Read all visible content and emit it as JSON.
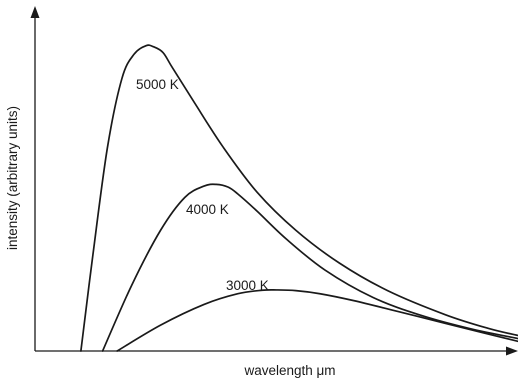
{
  "chart_data": {
    "type": "line",
    "title": "",
    "xlabel": "wavelength μm",
    "ylabel": "intensity (arbitrary units)",
    "xlim": [
      0,
      10
    ],
    "ylim": [
      0,
      100
    ],
    "grid": false,
    "legend": "none",
    "series": [
      {
        "name": "5000 K",
        "x": [
          0.95,
          1.2,
          1.5,
          1.8,
          2.05,
          2.3,
          2.45,
          2.65,
          2.85,
          3.3,
          3.9,
          4.6,
          5.4,
          6.3,
          7.3,
          8.5,
          9.4,
          10.0
        ],
        "values": [
          0,
          28,
          59,
          79,
          86,
          88.5,
          88.2,
          86.5,
          82,
          72,
          59,
          46,
          35,
          25.5,
          17.5,
          10.5,
          6.5,
          4.5
        ]
      },
      {
        "name": "4000 K",
        "x": [
          1.4,
          2.0,
          2.6,
          3.1,
          3.5,
          3.75,
          4.0,
          4.2,
          4.6,
          5.2,
          6.0,
          7.0,
          8.0,
          9.0,
          10.0
        ],
        "values": [
          0,
          19,
          35,
          44.5,
          47.8,
          48.3,
          47.5,
          45.5,
          40.5,
          32.5,
          23.5,
          15.5,
          10.3,
          6.5,
          3.6
        ]
      },
      {
        "name": "3000 K",
        "x": [
          1.7,
          2.6,
          3.5,
          4.2,
          4.7,
          5.0,
          5.4,
          5.9,
          6.6,
          7.5,
          8.5,
          9.3,
          10.0
        ],
        "values": [
          0,
          7.5,
          13.5,
          16.6,
          17.6,
          17.7,
          17.5,
          16.6,
          14.6,
          11.5,
          8.0,
          5.2,
          2.8
        ]
      }
    ],
    "annotations": [
      "5000 K",
      "4000 K",
      "3000 K"
    ]
  }
}
